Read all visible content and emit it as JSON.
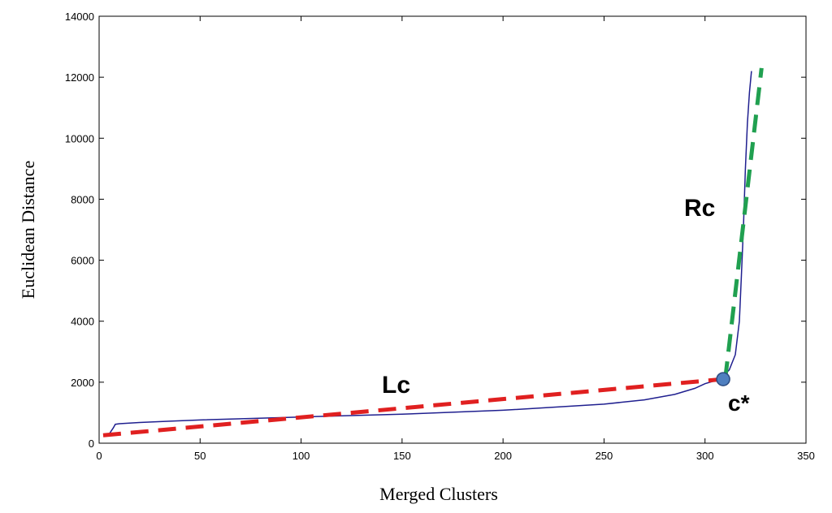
{
  "chart_data": {
    "type": "line",
    "title": "",
    "xlabel": "Merged Clusters",
    "ylabel": "Euclidean Distance",
    "xlim": [
      0,
      350
    ],
    "ylim": [
      0,
      14000
    ],
    "xticks": [
      "0",
      "50",
      "100",
      "150",
      "200",
      "250",
      "300",
      "350"
    ],
    "yticks": [
      "0",
      "2000",
      "4000",
      "6000",
      "8000",
      "10000",
      "12000",
      "14000"
    ],
    "grid": false,
    "colors": {
      "curve": "#1f1f8f",
      "left_fit": "#e02020",
      "right_fit": "#20a050",
      "knee_point": "#4f7fbf"
    },
    "series": [
      {
        "x": [
          5,
          7,
          8,
          10,
          20,
          35,
          50,
          100,
          150,
          200,
          250,
          270,
          285,
          295,
          300,
          305,
          308,
          312,
          315,
          317,
          318,
          319,
          320,
          321,
          322,
          323
        ],
        "y": [
          300,
          500,
          620,
          640,
          680,
          720,
          760,
          860,
          950,
          1080,
          1280,
          1420,
          1600,
          1800,
          1950,
          2050,
          2150,
          2400,
          2900,
          4000,
          5500,
          7000,
          9000,
          10500,
          11500,
          12200
        ]
      }
    ],
    "fit_lines": [
      {
        "x": [
          2,
          309
        ],
        "y": [
          260,
          2100
        ]
      },
      {
        "x": [
          310,
          328
        ],
        "y": [
          2100,
          12300
        ]
      }
    ],
    "knee": {
      "x": 309,
      "y": 2100
    },
    "annotations": {
      "lc": "Lc",
      "rc": "Rc",
      "c_star": "c*"
    }
  }
}
